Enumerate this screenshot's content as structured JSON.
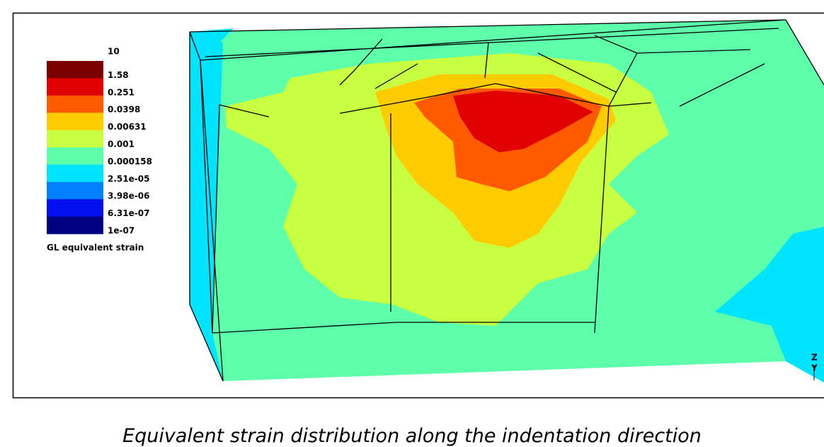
{
  "legend": {
    "title": "GL equivalent strain",
    "levels": [
      "10",
      "1.58",
      "0.251",
      "0.0398",
      "0.00631",
      "0.001",
      "0.000158",
      "2.51e-05",
      "3.98e-06",
      "6.31e-07",
      "1e-07"
    ],
    "colors": [
      "#7a0000",
      "#e00000",
      "#ff5a00",
      "#ffcc00",
      "#c8ff40",
      "#5effaa",
      "#00e5ff",
      "#0080ff",
      "#0010ee",
      "#000080"
    ]
  },
  "axes_triad": {
    "z": "Z",
    "y": "Y"
  },
  "caption": "Equivalent strain distribution along the indentation direction"
}
